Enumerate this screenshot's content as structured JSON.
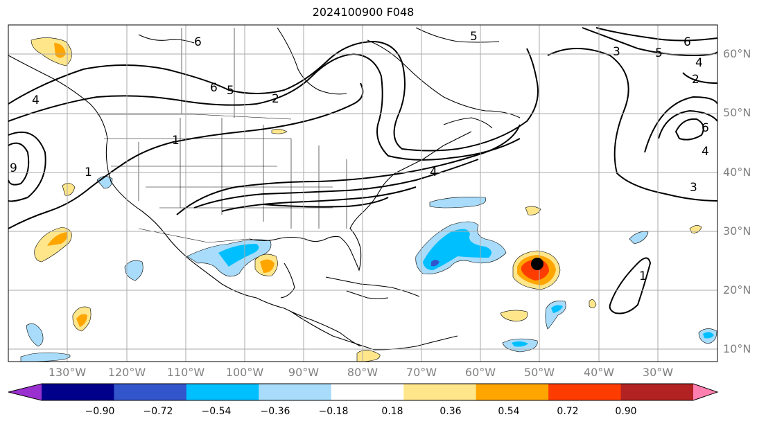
{
  "title": "2024100900 F048",
  "lon_labels": [
    "130°W",
    "120°W",
    "110°W",
    "100°W",
    "90°W",
    "80°W",
    "70°W",
    "60°W",
    "50°W",
    "40°W",
    "30°W"
  ],
  "lat_labels": [
    "60°N",
    "50°N",
    "40°N",
    "30°N",
    "20°N",
    "10°N"
  ],
  "colorbar": {
    "tick_labels": [
      "−0.90",
      "−0.72",
      "−0.54",
      "−0.36",
      "−0.18",
      "0.18",
      "0.36",
      "0.54",
      "0.72",
      "0.90"
    ],
    "colors": [
      "#9b30d0",
      "#00008b",
      "#3355cc",
      "#00bfff",
      "#a8dcfa",
      "#ffffff",
      "#ffe68a",
      "#ffa500",
      "#ff3c00",
      "#b22222",
      "#ff80b0"
    ]
  },
  "contour_labels": [
    "6",
    "6",
    "5",
    "2",
    "1",
    "1",
    "4",
    "4",
    "9",
    "5",
    "3",
    "5",
    "6",
    "4",
    "2",
    "6",
    "4",
    "3",
    "1"
  ],
  "storm_marker": "black-dot"
}
